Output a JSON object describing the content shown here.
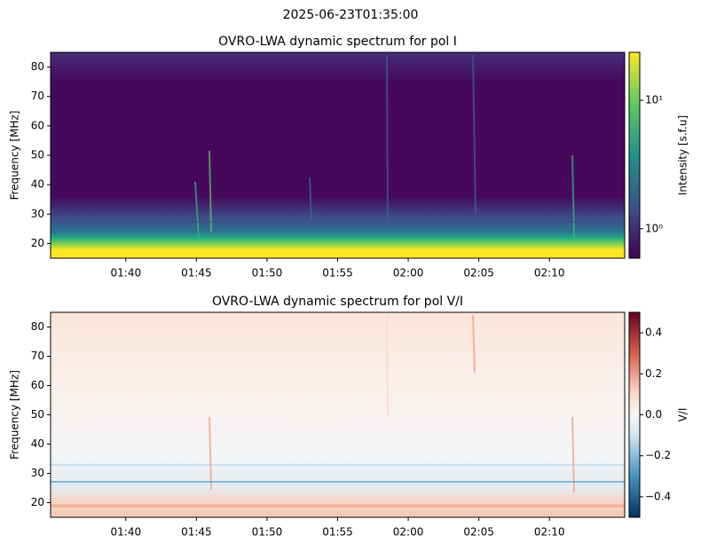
{
  "suptitle": "2025-06-23T01:35:00",
  "chart_data": [
    {
      "type": "heatmap",
      "title": "OVRO-LWA dynamic spectrum for pol I",
      "ylabel": "Frequency [MHz]",
      "ylim": [
        15,
        85
      ],
      "yticks": [
        20,
        30,
        40,
        50,
        60,
        70,
        80
      ],
      "xlim": [
        94.67,
        135.33
      ],
      "xticks": [
        {
          "value": 100,
          "label": "01:40"
        },
        {
          "value": 105,
          "label": "01:45"
        },
        {
          "value": 110,
          "label": "01:50"
        },
        {
          "value": 115,
          "label": "01:55"
        },
        {
          "value": 120,
          "label": "02:00"
        },
        {
          "value": 125,
          "label": "02:05"
        },
        {
          "value": 130,
          "label": "02:10"
        }
      ],
      "colorbar": {
        "label": "Intensity [s.f.u]",
        "colormap": "viridis",
        "log": true,
        "lim": [
          0.59,
          23.6
        ],
        "ticks": [
          {
            "value": 1,
            "label": "10⁰"
          },
          {
            "value": 10,
            "label": "10¹"
          }
        ]
      }
    },
    {
      "type": "heatmap",
      "title": "OVRO-LWA dynamic spectrum for pol V/I",
      "ylabel": "Frequency [MHz]",
      "ylim": [
        15,
        85
      ],
      "yticks": [
        20,
        30,
        40,
        50,
        60,
        70,
        80
      ],
      "xlim": [
        94.67,
        135.33
      ],
      "xticks": [
        {
          "value": 100,
          "label": "01:40"
        },
        {
          "value": 105,
          "label": "01:45"
        },
        {
          "value": 110,
          "label": "01:50"
        },
        {
          "value": 115,
          "label": "01:55"
        },
        {
          "value": 120,
          "label": "02:00"
        },
        {
          "value": 125,
          "label": "02:05"
        },
        {
          "value": 130,
          "label": "02:10"
        }
      ],
      "colorbar": {
        "label": "V/I",
        "colormap": "RdBu_r",
        "log": false,
        "lim": [
          -0.5,
          0.5
        ],
        "ticks": [
          {
            "value": -0.4,
            "label": "−0.4"
          },
          {
            "value": -0.2,
            "label": "−0.2"
          },
          {
            "value": 0,
            "label": "0.0"
          },
          {
            "value": 0.2,
            "label": "0.2"
          },
          {
            "value": 0.4,
            "label": "0.4"
          }
        ]
      }
    }
  ]
}
